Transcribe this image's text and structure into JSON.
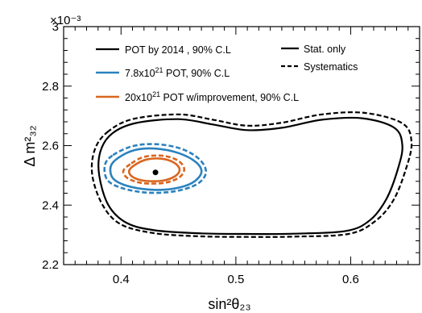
{
  "chart_data": {
    "type": "contour",
    "xlabel": "sin²θ₂₃",
    "ylabel": "Δ m²₃₂",
    "y_multiplier": "×10⁻³",
    "xlim": [
      0.35,
      0.66
    ],
    "ylim": [
      2.2,
      3.0
    ],
    "x_ticks": [
      "0.4",
      "0.5",
      "0.6"
    ],
    "y_ticks": [
      "2.2",
      "2.4",
      "2.6",
      "2.8",
      "3"
    ],
    "grid": false,
    "legend": {
      "placement": "top",
      "entries": [
        {
          "label": "POT by 2014 , 90% C.L",
          "color": "#000000",
          "style": "solid"
        },
        {
          "label": "7.8x10^21 POT, 90% C.L",
          "color": "#2a82be",
          "style": "solid"
        },
        {
          "label": "20x10^21 POT w/improvement, 90% C.L",
          "color": "#d9661f",
          "style": "solid"
        }
      ],
      "style_entries": [
        {
          "label": "Stat. only",
          "style": "solid"
        },
        {
          "label": "Systematics",
          "style": "dashed"
        }
      ]
    },
    "best_fit": {
      "x": 0.43,
      "y": 2.51
    },
    "series": [
      {
        "name": "POT by 2014 , 90% C.L",
        "variant": "Stat. only",
        "color": "#000000",
        "dash": false,
        "points": [
          [
            0.392,
            2.64
          ],
          [
            0.413,
            2.676
          ],
          [
            0.45,
            2.689
          ],
          [
            0.48,
            2.671
          ],
          [
            0.51,
            2.652
          ],
          [
            0.54,
            2.66
          ],
          [
            0.575,
            2.687
          ],
          [
            0.61,
            2.692
          ],
          [
            0.638,
            2.66
          ],
          [
            0.645,
            2.6
          ],
          [
            0.641,
            2.52
          ],
          [
            0.631,
            2.42
          ],
          [
            0.617,
            2.35
          ],
          [
            0.596,
            2.313
          ],
          [
            0.55,
            2.304
          ],
          [
            0.51,
            2.303
          ],
          [
            0.47,
            2.305
          ],
          [
            0.43,
            2.315
          ],
          [
            0.405,
            2.34
          ],
          [
            0.389,
            2.4
          ],
          [
            0.381,
            2.5
          ],
          [
            0.382,
            2.58
          ]
        ]
      },
      {
        "name": "POT by 2014 , 90% C.L",
        "variant": "Systematics",
        "color": "#000000",
        "dash": true,
        "points": [
          [
            0.388,
            2.645
          ],
          [
            0.41,
            2.689
          ],
          [
            0.45,
            2.705
          ],
          [
            0.48,
            2.687
          ],
          [
            0.51,
            2.667
          ],
          [
            0.54,
            2.677
          ],
          [
            0.575,
            2.705
          ],
          [
            0.612,
            2.71
          ],
          [
            0.645,
            2.675
          ],
          [
            0.653,
            2.61
          ],
          [
            0.648,
            2.52
          ],
          [
            0.637,
            2.415
          ],
          [
            0.621,
            2.345
          ],
          [
            0.598,
            2.303
          ],
          [
            0.55,
            2.294
          ],
          [
            0.51,
            2.293
          ],
          [
            0.47,
            2.295
          ],
          [
            0.43,
            2.305
          ],
          [
            0.4,
            2.335
          ],
          [
            0.384,
            2.4
          ],
          [
            0.375,
            2.5
          ],
          [
            0.377,
            2.585
          ]
        ]
      },
      {
        "name": "7.8x10^21 POT, 90% C.L",
        "variant": "Stat. only",
        "color": "#2a82be",
        "dash": false,
        "points": [
          [
            0.398,
            2.56
          ],
          [
            0.412,
            2.585
          ],
          [
            0.43,
            2.59
          ],
          [
            0.45,
            2.575
          ],
          [
            0.465,
            2.545
          ],
          [
            0.47,
            2.51
          ],
          [
            0.462,
            2.475
          ],
          [
            0.445,
            2.455
          ],
          [
            0.425,
            2.452
          ],
          [
            0.405,
            2.465
          ],
          [
            0.393,
            2.49
          ],
          [
            0.391,
            2.53
          ]
        ]
      },
      {
        "name": "7.8x10^21 POT, 90% C.L",
        "variant": "Systematics",
        "color": "#2a82be",
        "dash": true,
        "points": [
          [
            0.393,
            2.568
          ],
          [
            0.41,
            2.598
          ],
          [
            0.43,
            2.605
          ],
          [
            0.452,
            2.59
          ],
          [
            0.468,
            2.555
          ],
          [
            0.474,
            2.51
          ],
          [
            0.466,
            2.47
          ],
          [
            0.446,
            2.446
          ],
          [
            0.423,
            2.442
          ],
          [
            0.401,
            2.457
          ],
          [
            0.388,
            2.485
          ],
          [
            0.386,
            2.535
          ]
        ]
      },
      {
        "name": "20x10^21 POT w/improvement, 90% C.L",
        "variant": "Stat. only",
        "color": "#d9661f",
        "dash": false,
        "points": [
          [
            0.412,
            2.535
          ],
          [
            0.422,
            2.553
          ],
          [
            0.435,
            2.556
          ],
          [
            0.446,
            2.543
          ],
          [
            0.451,
            2.52
          ],
          [
            0.447,
            2.497
          ],
          [
            0.436,
            2.482
          ],
          [
            0.42,
            2.482
          ],
          [
            0.41,
            2.495
          ],
          [
            0.407,
            2.515
          ]
        ]
      },
      {
        "name": "20x10^21 POT w/improvement, 90% C.L",
        "variant": "Systematics",
        "color": "#d9661f",
        "dash": true,
        "points": [
          [
            0.409,
            2.54
          ],
          [
            0.42,
            2.562
          ],
          [
            0.436,
            2.566
          ],
          [
            0.449,
            2.551
          ],
          [
            0.455,
            2.523
          ],
          [
            0.451,
            2.494
          ],
          [
            0.438,
            2.475
          ],
          [
            0.419,
            2.474
          ],
          [
            0.406,
            2.49
          ],
          [
            0.402,
            2.515
          ]
        ]
      }
    ]
  }
}
